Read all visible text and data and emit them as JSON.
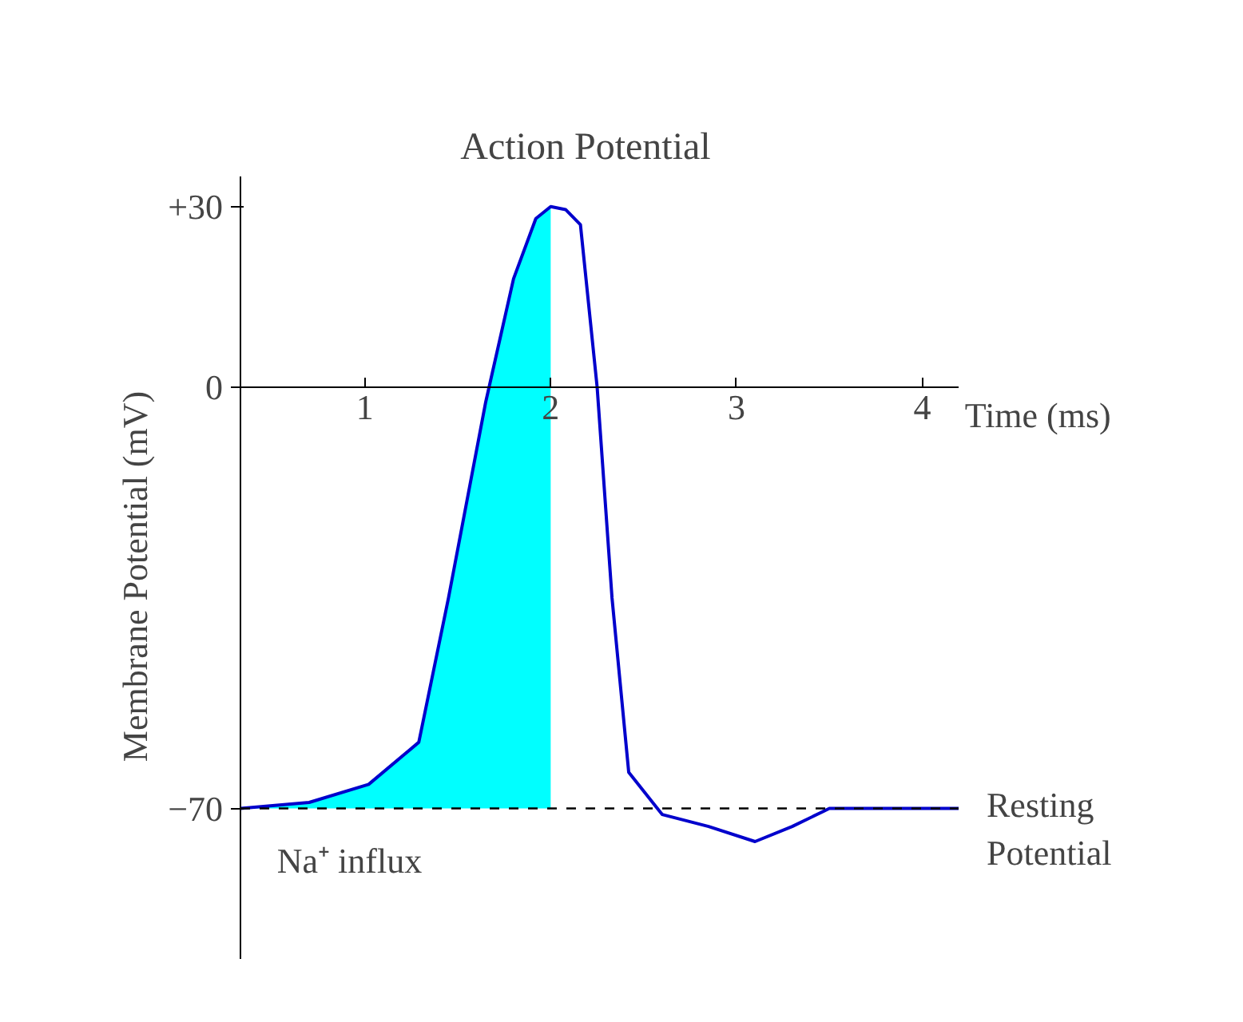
{
  "chart_data": {
    "type": "line",
    "title": "Action    Potential",
    "xlabel": "Time (ms)",
    "ylabel": "Membrane  Potential  (mV)",
    "series": [
      {
        "color": "#0000cc",
        "x": [
          0.33,
          0.7,
          1.02,
          1.29,
          1.45,
          1.65,
          1.8,
          1.92,
          2.0,
          2.08,
          2.16,
          2.25,
          2.33,
          2.42,
          2.6,
          2.85,
          3.1,
          3.3,
          3.5,
          4.2
        ],
        "values": [
          -70,
          -69,
          -66,
          -59,
          -35,
          -2.5,
          18,
          28,
          30,
          29.5,
          27,
          0,
          -35,
          -64,
          -71,
          -73,
          -75.5,
          -73,
          -70,
          -70
        ]
      },
      {
        "type": "area",
        "color": "#00ffff",
        "x": [
          0.33,
          0.7,
          1.02,
          1.29,
          1.45,
          1.65,
          1.8,
          1.92,
          2.0,
          2.0
        ],
        "values": [
          -70,
          -69,
          -66,
          -59,
          -35,
          -2.5,
          18,
          28,
          30,
          -70
        ]
      }
    ],
    "xlim": [
      0.33,
      4.2
    ],
    "ylim": [
      -95,
      35
    ],
    "xticks": [
      1,
      2,
      3,
      4
    ],
    "yticks": [
      {
        "value": 30,
        "label": "+30"
      },
      0,
      -70
    ],
    "grid": false,
    "ref_lines": [
      {
        "axis": "y",
        "value": -70,
        "label": "Resting\nPotential",
        "color": "#000000",
        "line_style": "dashed"
      }
    ],
    "annotations": [
      {
        "text": "Na⁺ influx",
        "x": 1.0,
        "y": -70
      }
    ]
  }
}
